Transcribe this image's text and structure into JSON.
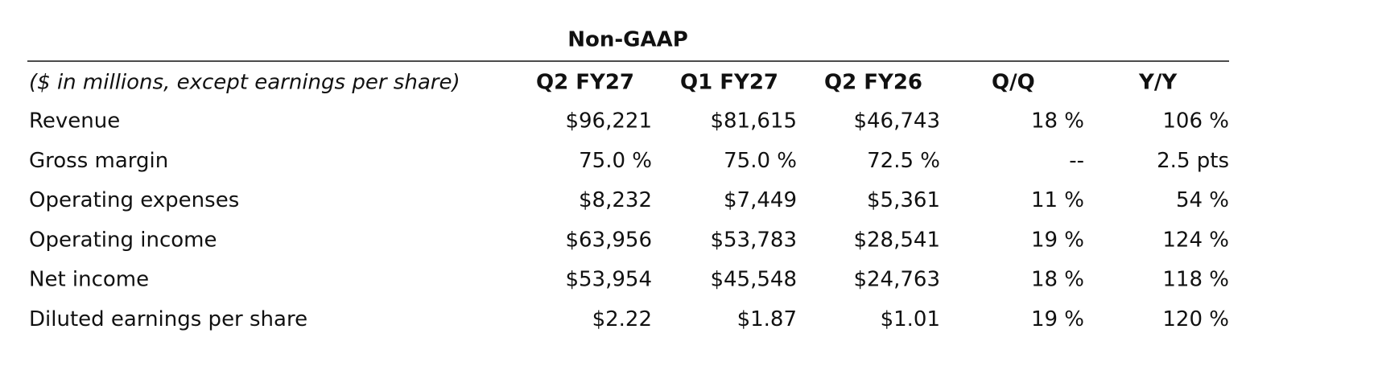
{
  "header": {
    "title": "Non-GAAP"
  },
  "table": {
    "columns": [
      "($ in millions, except earnings per share)",
      "Q2 FY27",
      "Q1 FY27",
      "Q2 FY26",
      "Q/Q",
      "Y/Y"
    ],
    "rows": [
      [
        "Revenue",
        "$96,221",
        "$81,615",
        "$46,743",
        "18 %",
        "106 %"
      ],
      [
        "Gross margin",
        "75.0 %",
        "75.0 %",
        "72.5 %",
        "--",
        "2.5 pts"
      ],
      [
        "Operating expenses",
        "$8,232",
        "$7,449",
        "$5,361",
        "11 %",
        "54 %"
      ],
      [
        "Operating income",
        "$63,956",
        "$53,783",
        "$28,541",
        "19 %",
        "124 %"
      ],
      [
        "Net income",
        "$53,954",
        "$45,548",
        "$24,763",
        "18 %",
        "118 %"
      ],
      [
        "Diluted earnings per share",
        "$2.22",
        "$1.87",
        "$1.01",
        "19 %",
        "120 %"
      ]
    ]
  }
}
